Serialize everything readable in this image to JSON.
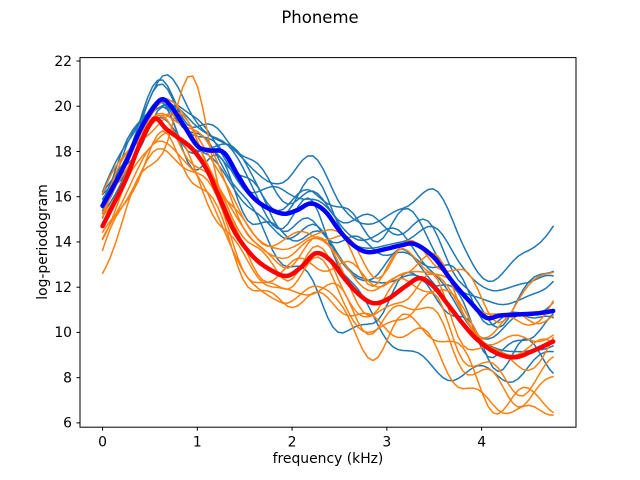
{
  "chart": {
    "title": "Phoneme",
    "xlabel": "frequency (kHz)",
    "ylabel": "log-periodogram"
  },
  "colors": {
    "thin_class_1": "#1f77b4",
    "thin_class_2": "#ff7f0e",
    "mean_class_1": "#0000ff",
    "mean_class_2": "#ff0000",
    "text": "#000000",
    "background": "#ffffff",
    "spine": "#000000"
  },
  "chart_data": {
    "type": "line",
    "title": "Phoneme",
    "xlabel": "frequency (kHz)",
    "ylabel": "log-periodogram",
    "xlim": [
      -0.238,
      4.996
    ],
    "ylim": [
      5.81,
      22.15
    ],
    "x_ticks": [
      0,
      1,
      2,
      3,
      4
    ],
    "x_tick_labels": [
      "0",
      "1",
      "2",
      "3",
      "4"
    ],
    "y_ticks": [
      6,
      8,
      10,
      12,
      14,
      16,
      18,
      20,
      22
    ],
    "y_tick_labels": [
      "6",
      "8",
      "10",
      "12",
      "14",
      "16",
      "18",
      "20",
      "22"
    ],
    "grid": false,
    "legend": null,
    "series": [
      {
        "name": "mean-curve-class-1",
        "color": "#0000ff",
        "width": 4.5,
        "points": [
          [
            0,
            15.6
          ],
          [
            0.12,
            16.5
          ],
          [
            0.25,
            17.55
          ],
          [
            0.38,
            18.8
          ],
          [
            0.5,
            19.7
          ],
          [
            0.62,
            20.3
          ],
          [
            0.72,
            20.0
          ],
          [
            0.85,
            19.2
          ],
          [
            1.0,
            18.25
          ],
          [
            1.12,
            18.05
          ],
          [
            1.28,
            17.95
          ],
          [
            1.42,
            17.0
          ],
          [
            1.55,
            16.15
          ],
          [
            1.7,
            15.6
          ],
          [
            1.9,
            15.25
          ],
          [
            2.05,
            15.4
          ],
          [
            2.2,
            15.7
          ],
          [
            2.35,
            15.35
          ],
          [
            2.5,
            14.5
          ],
          [
            2.65,
            13.85
          ],
          [
            2.8,
            13.55
          ],
          [
            3.0,
            13.7
          ],
          [
            3.15,
            13.85
          ],
          [
            3.3,
            13.9
          ],
          [
            3.5,
            13.3
          ],
          [
            3.7,
            12.2
          ],
          [
            3.9,
            11.25
          ],
          [
            4.05,
            10.65
          ],
          [
            4.2,
            10.75
          ],
          [
            4.4,
            10.8
          ],
          [
            4.6,
            10.85
          ],
          [
            4.755,
            10.95
          ]
        ]
      },
      {
        "name": "mean-curve-class-2",
        "color": "#ff0000",
        "width": 4.5,
        "points": [
          [
            0,
            14.7
          ],
          [
            0.12,
            15.7
          ],
          [
            0.25,
            16.8
          ],
          [
            0.38,
            18.2
          ],
          [
            0.5,
            19.2
          ],
          [
            0.57,
            19.45
          ],
          [
            0.67,
            19.0
          ],
          [
            0.8,
            18.6
          ],
          [
            0.95,
            18.1
          ],
          [
            1.1,
            17.2
          ],
          [
            1.25,
            15.8
          ],
          [
            1.4,
            14.4
          ],
          [
            1.6,
            13.3
          ],
          [
            1.8,
            12.7
          ],
          [
            1.95,
            12.5
          ],
          [
            2.1,
            12.9
          ],
          [
            2.25,
            13.5
          ],
          [
            2.4,
            13.2
          ],
          [
            2.55,
            12.4
          ],
          [
            2.7,
            11.7
          ],
          [
            2.85,
            11.3
          ],
          [
            3.0,
            11.45
          ],
          [
            3.2,
            12.05
          ],
          [
            3.35,
            12.4
          ],
          [
            3.5,
            12.0
          ],
          [
            3.65,
            11.2
          ],
          [
            3.8,
            10.4
          ],
          [
            3.95,
            9.7
          ],
          [
            4.15,
            9.1
          ],
          [
            4.35,
            8.9
          ],
          [
            4.55,
            9.2
          ],
          [
            4.755,
            9.6
          ]
        ]
      }
    ],
    "ensembles": [
      {
        "name": "class-1-sample-curves",
        "color": "#1f77b4",
        "width": 1.5,
        "mean_ref": 0,
        "grid_x": [
          0,
          0.317,
          0.634,
          0.951,
          1.268,
          1.585,
          1.902,
          2.219,
          2.536,
          2.853,
          3.17,
          3.487,
          3.804,
          4.121,
          4.438,
          4.755
        ],
        "curves": [
          {
            "offsets": [
              0.5,
              0.6,
              1.1,
              0.9,
              0.6,
              1.0,
              1.6,
              1.9,
              1.4,
              1.0,
              1.8,
              2.9,
              2.2,
              1.6,
              2.6,
              3.9
            ],
            "wiggle": [
              0.25,
              9,
              0.5
            ]
          },
          {
            "offsets": [
              0.3,
              0.4,
              0.8,
              0.5,
              0.9,
              1.4,
              0.8,
              0.3,
              0.8,
              1.3,
              0.7,
              1.2,
              0.4,
              -0.3,
              0.9,
              2.0
            ],
            "wiggle": [
              0.3,
              11,
              2.1
            ]
          },
          {
            "offsets": [
              0.1,
              -0.2,
              0.4,
              0.7,
              0.2,
              -0.4,
              0.3,
              0.9,
              0.4,
              -0.2,
              0.5,
              1.0,
              1.5,
              0.8,
              1.7,
              1.2
            ],
            "wiggle": [
              0.35,
              10,
              4.2
            ]
          },
          {
            "offsets": [
              -0.1,
              0.2,
              -0.3,
              -0.6,
              -0.2,
              0.4,
              -0.5,
              -0.9,
              -0.3,
              0.3,
              -0.6,
              -0.2,
              0.5,
              -0.4,
              0.2,
              -0.6
            ],
            "wiggle": [
              0.3,
              12,
              1.0
            ]
          },
          {
            "offsets": [
              -0.3,
              -0.5,
              -0.8,
              -0.4,
              -0.9,
              -0.5,
              -1.2,
              -0.7,
              -1.5,
              -1.0,
              -0.4,
              -0.9,
              -1.6,
              -1.1,
              -1.9,
              -1.3
            ],
            "wiggle": [
              0.25,
              9.5,
              3.3
            ]
          },
          {
            "offsets": [
              0.2,
              0.5,
              0.2,
              -0.2,
              0.5,
              0.8,
              0.2,
              0.6,
              1.1,
              0.6,
              1.4,
              0.6,
              -0.2,
              0.9,
              0.4,
              1.6
            ],
            "wiggle": [
              0.3,
              10.5,
              5.1
            ]
          },
          {
            "offsets": [
              -0.4,
              -0.3,
              -0.6,
              -1.0,
              -0.6,
              -1.1,
              -0.8,
              -1.4,
              -0.9,
              -1.7,
              -1.1,
              -1.8,
              -1.0,
              -2.1,
              -1.4,
              -2.4
            ],
            "wiggle": [
              0.35,
              11.5,
              0.2
            ]
          },
          {
            "offsets": [
              0.4,
              0.1,
              0.6,
              0.3,
              -0.1,
              0.3,
              0.9,
              0.4,
              0.1,
              0.8,
              0.3,
              -0.5,
              -1.2,
              -0.7,
              -0.2,
              0.6
            ],
            "wiggle": [
              0.3,
              9.8,
              2.8
            ]
          },
          {
            "offsets": [
              -0.2,
              0.3,
              0.1,
              0.4,
              0.8,
              0.1,
              -0.4,
              -0.1,
              -1.5,
              -3.0,
              -4.5,
              -5.0,
              -3.5,
              -2.5,
              -2.6,
              -1.8
            ],
            "wiggle": [
              0.35,
              10.2,
              4.9
            ]
          },
          {
            "offsets": [
              0.0,
              -0.4,
              -0.2,
              0.2,
              -0.4,
              -0.8,
              -2.0,
              -3.5,
              -4.4,
              -3.0,
              -1.6,
              -1.0,
              -0.5,
              -1.8,
              -1.0,
              -0.4
            ],
            "wiggle": [
              0.3,
              11.8,
              1.6
            ]
          }
        ]
      },
      {
        "name": "class-2-sample-curves",
        "color": "#ff7f0e",
        "width": 1.5,
        "mean_ref": 1,
        "grid_x": [
          0,
          0.317,
          0.634,
          0.951,
          1.268,
          1.585,
          1.902,
          2.219,
          2.536,
          2.853,
          3.17,
          3.487,
          3.804,
          4.121,
          4.438,
          4.755
        ],
        "curves": [
          {
            "offsets": [
              1.2,
              1.0,
              0.8,
              1.2,
              0.9,
              1.3,
              0.8,
              1.2,
              1.5,
              1.0,
              1.5,
              0.8,
              1.2,
              1.8,
              1.2,
              1.9
            ],
            "wiggle": [
              0.3,
              10.3,
              0.9
            ]
          },
          {
            "offsets": [
              -1.9,
              -1.5,
              -0.9,
              2.9,
              0.5,
              -0.6,
              0.2,
              -0.3,
              0.4,
              1.1,
              0.3,
              0.9,
              0.2,
              0.9,
              1.7,
              1.0
            ],
            "wiggle": [
              0.35,
              11.2,
              3.7
            ]
          },
          {
            "offsets": [
              0.6,
              0.4,
              0.7,
              0.3,
              0.8,
              0.4,
              1.0,
              0.5,
              0.9,
              0.3,
              0.8,
              1.3,
              0.6,
              0.2,
              0.8,
              0.3
            ],
            "wiggle": [
              0.3,
              9.4,
              5.5
            ]
          },
          {
            "offsets": [
              0.2,
              0.5,
              0.1,
              -0.4,
              0.2,
              0.6,
              -0.2,
              0.3,
              -0.4,
              -0.8,
              -0.3,
              0.2,
              -0.6,
              -0.2,
              0.4,
              -0.3
            ],
            "wiggle": [
              0.35,
              10.8,
              1.4
            ]
          },
          {
            "offsets": [
              -0.3,
              -0.6,
              -0.2,
              -0.7,
              -1.1,
              -0.4,
              -0.9,
              -1.4,
              -0.8,
              -1.3,
              -0.7,
              -1.2,
              -1.8,
              -1.2,
              -2.1,
              -1.6
            ],
            "wiggle": [
              0.3,
              11.6,
              4.4
            ]
          },
          {
            "offsets": [
              -0.8,
              -0.5,
              -1.0,
              -0.6,
              -1.3,
              -0.9,
              -1.6,
              -1.0,
              -1.7,
              -2.2,
              -1.5,
              -2.0,
              -1.4,
              -2.4,
              -1.8,
              -2.8
            ],
            "wiggle": [
              0.35,
              9.7,
              2.3
            ]
          },
          {
            "offsets": [
              0.9,
              0.6,
              0.3,
              0.8,
              0.4,
              1.0,
              1.5,
              0.9,
              1.8,
              1.2,
              1.9,
              1.1,
              2.3,
              1.5,
              2.6,
              3.2
            ],
            "wiggle": [
              0.3,
              10.1,
              5.9
            ]
          },
          {
            "offsets": [
              -1.3,
              -1.0,
              -0.6,
              -1.2,
              -0.8,
              -1.5,
              -1.1,
              -1.9,
              -1.3,
              -0.9,
              -1.9,
              -2.5,
              -2.9,
              -2.2,
              -2.6,
              -2.9
            ],
            "wiggle": [
              0.35,
              11.4,
              0.7
            ]
          },
          {
            "offsets": [
              0.4,
              0.2,
              0.5,
              0.9,
              1.3,
              0.7,
              0.3,
              0.8,
              0.2,
              -0.5,
              0.4,
              -0.2,
              0.7,
              0.1,
              -0.7,
              0.2
            ],
            "wiggle": [
              0.3,
              9.9,
              3.1
            ]
          },
          {
            "offsets": [
              -0.6,
              -0.9,
              -1.3,
              -0.8,
              -0.4,
              -1.1,
              -0.6,
              -0.2,
              -0.9,
              -1.5,
              -1.1,
              -0.6,
              -1.3,
              -0.9,
              -1.5,
              -1.0
            ],
            "wiggle": [
              0.35,
              10.6,
              1.9
            ]
          }
        ]
      }
    ]
  }
}
